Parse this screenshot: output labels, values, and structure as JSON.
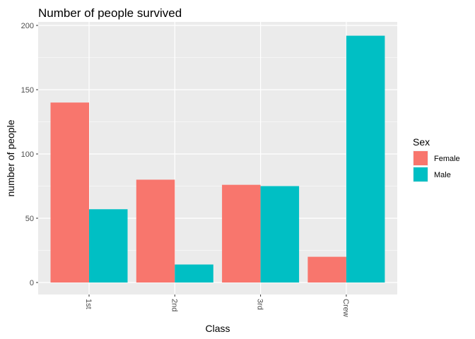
{
  "chart_data": {
    "type": "bar",
    "title": "Number of people survived",
    "xlabel": "Class",
    "ylabel": "number of people",
    "categories": [
      "1st",
      "2nd",
      "3rd",
      "Crew"
    ],
    "series": [
      {
        "name": "Female",
        "color": "#F8766D",
        "values": [
          140,
          80,
          76,
          20
        ]
      },
      {
        "name": "Male",
        "color": "#00BFC4",
        "values": [
          57,
          14,
          75,
          192
        ]
      }
    ],
    "y_ticks": [
      "0",
      "50",
      "100",
      "150",
      "200"
    ],
    "ylim": [
      0,
      200
    ],
    "legend": {
      "title": "Sex",
      "position": "right"
    },
    "grid": true,
    "panel_background": "#EBEBEB",
    "x_tick_label_rotation": "90deg"
  }
}
